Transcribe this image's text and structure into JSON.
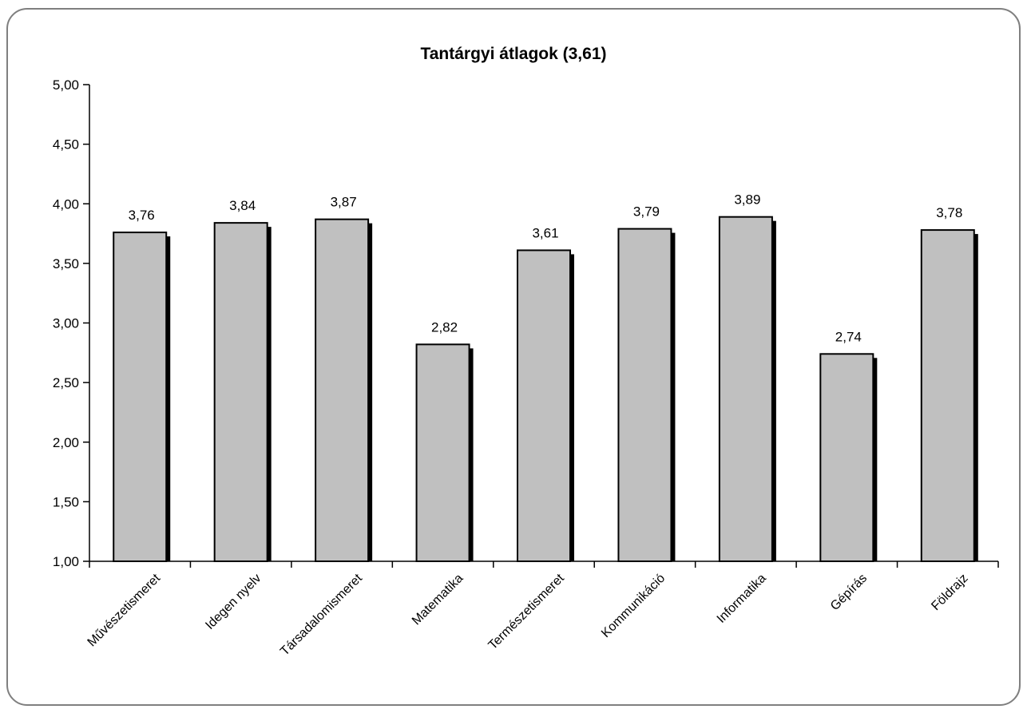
{
  "chart_data": {
    "type": "bar",
    "title": "Tantárgyi átlagok (3,61)",
    "xlabel": "",
    "ylabel": "",
    "categories": [
      "Művészetismeret",
      "Idegen nyelv",
      "Társadalomismeret",
      "Matematika",
      "Természetismeret",
      "Kommunikáció",
      "Informatika",
      "Gépírás",
      "Földrajz"
    ],
    "values": [
      3.76,
      3.84,
      3.87,
      2.82,
      3.61,
      3.79,
      3.89,
      2.74,
      3.78
    ],
    "value_labels": [
      "3,76",
      "3,84",
      "3,87",
      "2,82",
      "3,61",
      "3,79",
      "3,89",
      "2,74",
      "3,78"
    ],
    "ylim": [
      1.0,
      5.0
    ],
    "yticks": [
      1.0,
      1.5,
      2.0,
      2.5,
      3.0,
      3.5,
      4.0,
      4.5,
      5.0
    ],
    "ytick_labels": [
      "1,00",
      "1,50",
      "2,00",
      "2,50",
      "3,00",
      "3,50",
      "4,00",
      "4,50",
      "5,00"
    ],
    "grid": false,
    "legend": "none",
    "colors": {
      "bar_fill": "#c0c0c0",
      "bar_border": "#000000",
      "bar_shadow": "#000000",
      "axis": "#000000",
      "frame": "#7f7f7f"
    }
  }
}
